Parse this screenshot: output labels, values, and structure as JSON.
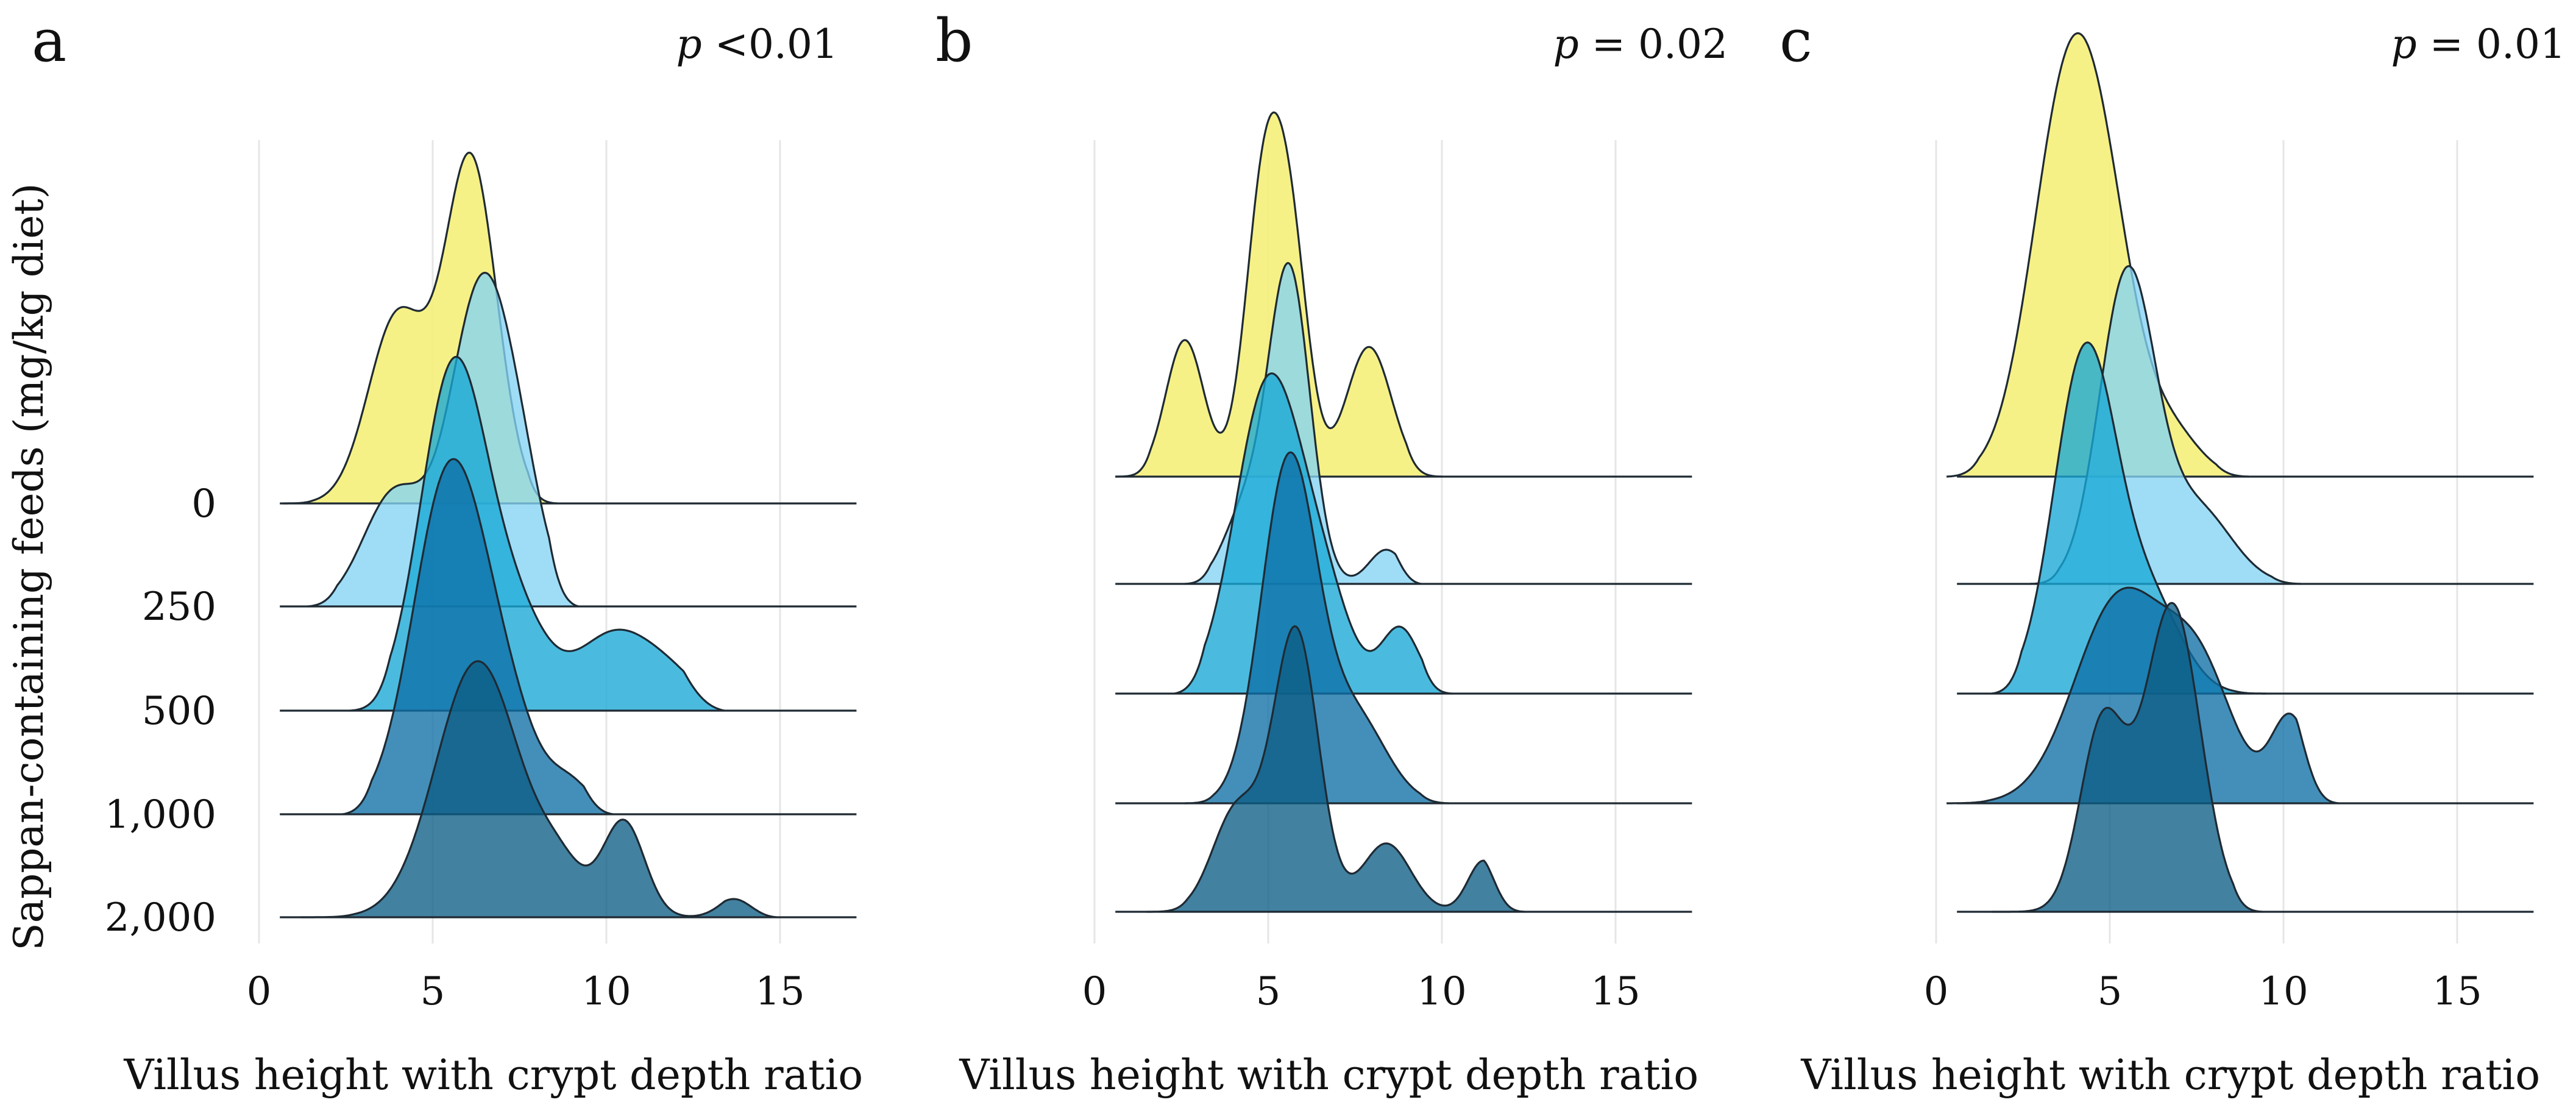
{
  "chart_data": {
    "type": "ridgeline",
    "ylabel": "Sappan-containing feeds (mg/kg diet)",
    "xlabel": "Villus height with crypt depth ratio",
    "categories": [
      "0",
      "250",
      "500",
      "1,000",
      "2,000"
    ],
    "colors": [
      "#F5F07C",
      "#84D3F5",
      "#17A8D6",
      "#0E6FA6",
      "#0D5D85"
    ],
    "xlim": [
      -0.5,
      17.2
    ],
    "xticks": [
      "0",
      "5",
      "10",
      "15"
    ],
    "xtick_values": [
      0,
      5,
      10,
      15
    ],
    "panels": [
      {
        "letter": "a",
        "p_label": "p",
        "p_value": "<0.01",
        "series": [
          {
            "name": "0",
            "range": [
              0.7,
              8.6
            ],
            "peaks": [
              [
                4.0,
                0.55,
                0.85
              ],
              [
                6.1,
                1.0,
                0.75
              ]
            ]
          },
          {
            "name": "250",
            "range": [
              1.4,
              9.2
            ],
            "peaks": [
              [
                3.9,
                0.33,
                0.9
              ],
              [
                6.4,
                0.92,
                0.9
              ],
              [
                7.6,
                0.2,
                0.7
              ]
            ]
          },
          {
            "name": "500",
            "range": [
              2.6,
              13.4
            ],
            "peaks": [
              [
                5.6,
                1.0,
                0.95
              ],
              [
                7.4,
                0.25,
                0.9
              ],
              [
                10.2,
                0.22,
                1.1
              ],
              [
                11.9,
                0.08,
                0.9
              ]
            ]
          },
          {
            "name": "1,000",
            "range": [
              2.4,
              10.2
            ],
            "peaks": [
              [
                5.5,
                1.0,
                1.05
              ],
              [
                7.2,
                0.22,
                0.9
              ],
              [
                9.0,
                0.08,
                0.6
              ]
            ]
          },
          {
            "name": "2,000",
            "range": [
              1.2,
              14.9
            ],
            "peaks": [
              [
                6.3,
                0.75,
                1.2
              ],
              [
                8.7,
                0.12,
                0.7
              ],
              [
                10.5,
                0.28,
                0.6
              ],
              [
                13.9,
                0.07,
                0.55
              ]
            ]
          }
        ]
      },
      {
        "letter": "b",
        "p_label": "p",
        "p_value": "= 0.02",
        "series": [
          {
            "name": "0",
            "range": [
              0.6,
              10.0
            ],
            "peaks": [
              [
                2.6,
                0.4,
                0.55
              ],
              [
                4.9,
                0.85,
                0.55
              ],
              [
                5.7,
                0.55,
                0.5
              ],
              [
                7.9,
                0.38,
                0.65
              ]
            ]
          },
          {
            "name": "250",
            "range": [
              2.6,
              9.4
            ],
            "peaks": [
              [
                5.6,
                0.92,
                0.6
              ],
              [
                4.3,
                0.2,
                0.6
              ],
              [
                8.4,
                0.1,
                0.5
              ]
            ]
          },
          {
            "name": "500",
            "range": [
              2.3,
              10.3
            ],
            "peaks": [
              [
                5.0,
                0.9,
                0.95
              ],
              [
                6.6,
                0.25,
                0.8
              ],
              [
                8.8,
                0.19,
                0.55
              ]
            ]
          },
          {
            "name": "1,000",
            "range": [
              2.6,
              10.2
            ],
            "peaks": [
              [
                5.6,
                1.0,
                0.8
              ],
              [
                7.5,
                0.25,
                0.9
              ]
            ]
          },
          {
            "name": "2,000",
            "range": [
              1.5,
              12.4
            ],
            "peaks": [
              [
                4.1,
                0.3,
                0.7
              ],
              [
                5.8,
                0.82,
                0.65
              ],
              [
                8.4,
                0.2,
                0.7
              ],
              [
                11.2,
                0.15,
                0.45
              ]
            ]
          }
        ]
      },
      {
        "letter": "c",
        "p_label": "p",
        "p_value": "= 0.01",
        "series": [
          {
            "name": "0",
            "range": [
              0.3,
              9.0
            ],
            "peaks": [
              [
                3.8,
                1.1,
                1.05
              ],
              [
                5.0,
                0.4,
                0.9
              ],
              [
                6.8,
                0.12,
                0.8
              ]
            ]
          },
          {
            "name": "250",
            "range": [
              2.7,
              10.5
            ],
            "peaks": [
              [
                5.5,
                0.9,
                0.8
              ],
              [
                7.5,
                0.22,
                1.0
              ]
            ]
          },
          {
            "name": "500",
            "range": [
              1.6,
              9.5
            ],
            "peaks": [
              [
                4.3,
                1.0,
                0.9
              ],
              [
                6.2,
                0.25,
                0.9
              ]
            ]
          },
          {
            "name": "1,000",
            "range": [
              0.3,
              11.6
            ],
            "peaks": [
              [
                5.3,
                0.6,
                1.3
              ],
              [
                7.6,
                0.35,
                1.0
              ],
              [
                10.2,
                0.25,
                0.55
              ]
            ]
          },
          {
            "name": "2,000",
            "range": [
              1.6,
              9.4
            ],
            "peaks": [
              [
                4.8,
                0.55,
                0.65
              ],
              [
                6.8,
                0.9,
                0.8
              ]
            ]
          }
        ]
      }
    ]
  }
}
